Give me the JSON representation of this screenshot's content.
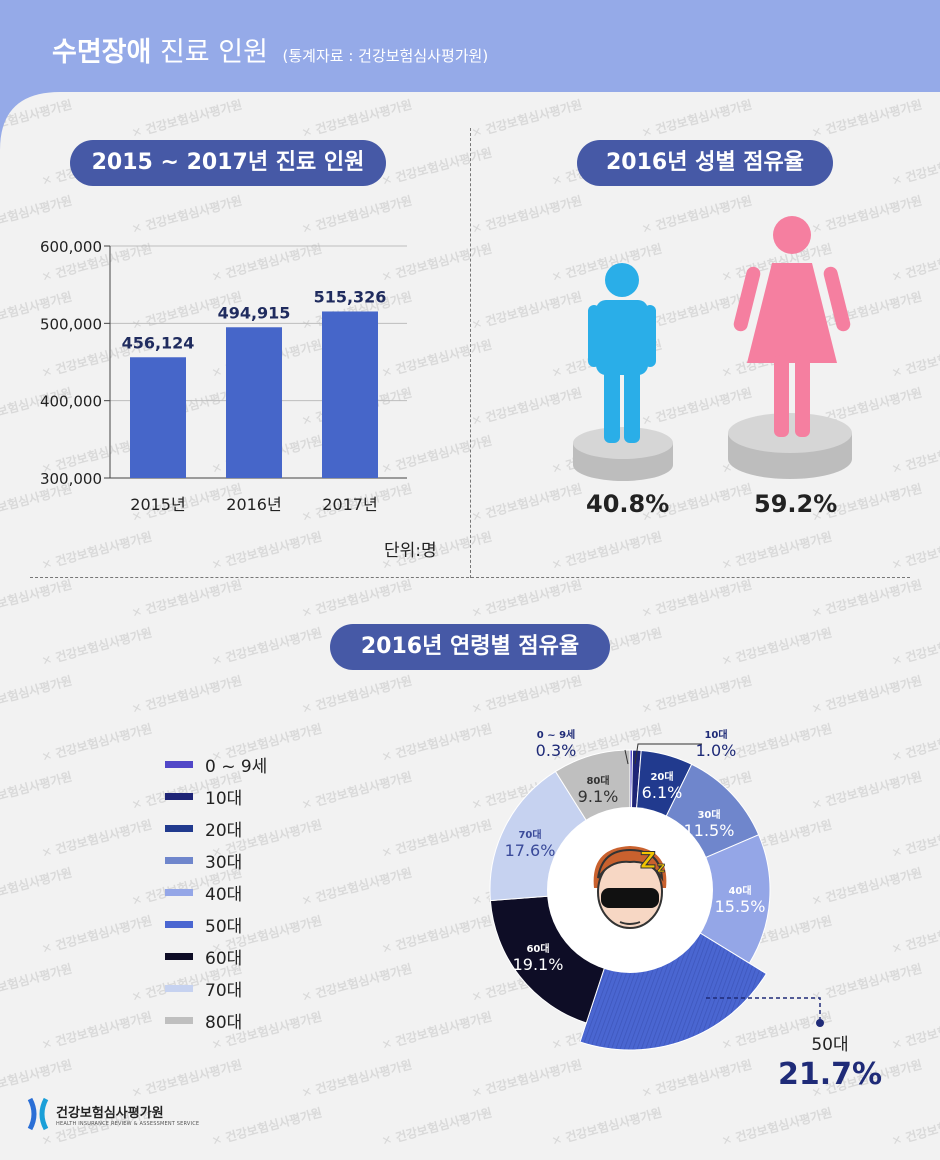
{
  "header": {
    "title_bold": "수면장애",
    "title_light": "진료 인원",
    "source": "(통계자료 : 건강보험심사평가원)"
  },
  "sections": {
    "yearly_title": "2015 ~ 2017년 진료 인원",
    "gender_title": "2016년 성별 점유율",
    "age_title": "2016년 연령별 점유율"
  },
  "watermark_text": "건강보험심사평가원",
  "footer": {
    "org_name": "건강보험심사평가원",
    "org_sub": "HEALTH INSURANCE REVIEW & ASSESSMENT SERVICE"
  },
  "chart_data": [
    {
      "type": "bar",
      "title": "2015 ~ 2017년 진료 인원",
      "categories": [
        "2015년",
        "2016년",
        "2017년"
      ],
      "values": [
        456124,
        494915,
        515326
      ],
      "value_labels": [
        "456,124",
        "494,915",
        "515,326"
      ],
      "ylim": [
        300000,
        600000
      ],
      "yticks": [
        300000,
        400000,
        500000,
        600000
      ],
      "ytick_labels": [
        "300,000",
        "400,000",
        "500,000",
        "600,000"
      ],
      "unit": "단위:명",
      "bar_color": "#4666c9",
      "grid": true
    },
    {
      "type": "bar",
      "title": "2016년 성별 점유율",
      "categories": [
        "남성",
        "여성"
      ],
      "values": [
        40.8,
        59.2
      ],
      "value_labels": [
        "40.8%",
        "59.2%"
      ],
      "colors": [
        "#2aaee8",
        "#f57fa0"
      ]
    },
    {
      "type": "pie",
      "title": "2016년 연령별 점유율",
      "labels": [
        "0 ~ 9세",
        "10대",
        "20대",
        "30대",
        "40대",
        "50대",
        "60대",
        "70대",
        "80대"
      ],
      "values": [
        0.3,
        1.0,
        6.1,
        11.5,
        15.5,
        21.7,
        19.1,
        17.6,
        9.1
      ],
      "colors": [
        "#5147c8",
        "#1e2476",
        "#213a8e",
        "#6f86cc",
        "#94a6e7",
        "#4a66d1",
        "#0e0d26",
        "#c6d2f0",
        "#bfbfbf"
      ],
      "legend": "left",
      "slice_labels": [
        {
          "name": "0 ~ 9세",
          "value": "0.3%"
        },
        {
          "name": "10대",
          "value": "1.0%"
        },
        {
          "name": "20대",
          "value": "6.1%"
        },
        {
          "name": "30대",
          "value": "11.5%"
        },
        {
          "name": "40대",
          "value": "15.5%"
        },
        {
          "name": "50대",
          "value": "21.7%"
        },
        {
          "name": "60대",
          "value": "19.1%"
        },
        {
          "name": "70대",
          "value": "17.6%"
        },
        {
          "name": "80대",
          "value": "9.1%"
        }
      ]
    }
  ]
}
